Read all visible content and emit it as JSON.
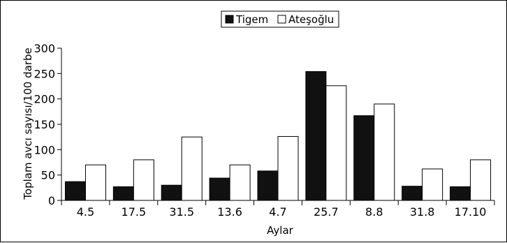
{
  "chart_data": {
    "type": "bar",
    "title": "",
    "xlabel": "Aylar",
    "ylabel": "Toplam avcı sayısı/100 darbe",
    "categories": [
      "4.5",
      "17.5",
      "31.5",
      "13.6",
      "4.7",
      "25.7",
      "8.8",
      "31.8",
      "17.10"
    ],
    "series": [
      {
        "name": "Tigem",
        "values": [
          37,
          27,
          30,
          44,
          58,
          254,
          167,
          28,
          27
        ],
        "color": "#111111"
      },
      {
        "name": "Ateşoğlu",
        "values": [
          70,
          80,
          125,
          70,
          126,
          226,
          190,
          62,
          80
        ],
        "color": "#ffffff"
      }
    ],
    "ylim": [
      0,
      300
    ],
    "yticks": [
      0,
      50,
      100,
      150,
      200,
      250,
      300
    ],
    "grid": false,
    "legend_position": "top"
  }
}
